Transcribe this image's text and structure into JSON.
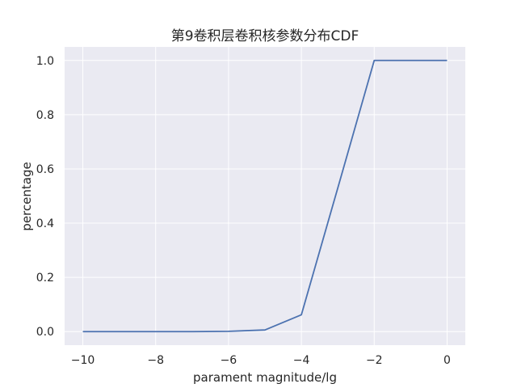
{
  "chart_data": {
    "type": "line",
    "title": "第9卷积层卷积核参数分布CDF",
    "xlabel": "parament magnitude/lg",
    "ylabel": "percentage",
    "xlim": [
      -10.5,
      0.5
    ],
    "ylim": [
      -0.05,
      1.05
    ],
    "grid": true,
    "x_ticks": [
      -10,
      -8,
      -6,
      -4,
      -2,
      0
    ],
    "x_tick_labels": [
      "−10",
      "−8",
      "−6",
      "−4",
      "−2",
      "0"
    ],
    "y_ticks": [
      0.0,
      0.2,
      0.4,
      0.6,
      0.8,
      1.0
    ],
    "y_tick_labels": [
      "0.0",
      "0.2",
      "0.4",
      "0.6",
      "0.8",
      "1.0"
    ],
    "series": [
      {
        "color": "#4c72b0",
        "x": [
          -10,
          -9,
          -8,
          -7,
          -6,
          -5,
          -4,
          -3,
          -2,
          -1,
          0
        ],
        "y": [
          0.0,
          0.0,
          0.0,
          0.0,
          0.001,
          0.006,
          0.062,
          0.53,
          1.0,
          1.0,
          1.0
        ]
      }
    ],
    "colors": {
      "plot_background": "#eaeaf2",
      "grid": "#ffffff",
      "text": "#262626"
    }
  }
}
